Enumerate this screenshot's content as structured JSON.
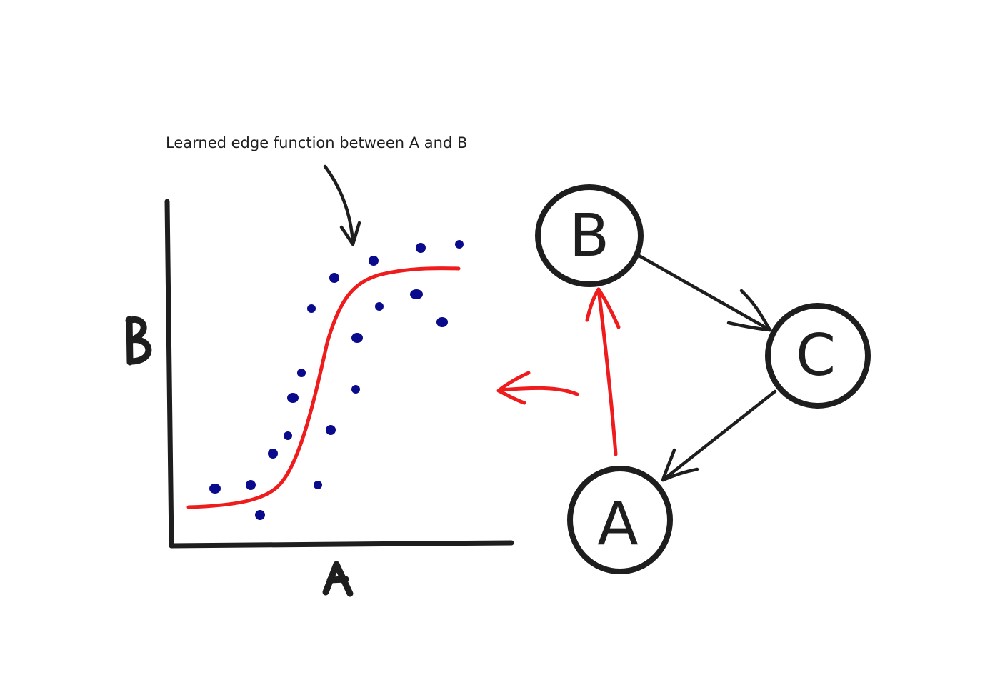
{
  "annotation": "Learned edge function between A and B",
  "plot": {
    "x_label": "A",
    "y_label": "B"
  },
  "graph": {
    "nodes": [
      {
        "id": "B",
        "label": "B"
      },
      {
        "id": "C",
        "label": "C"
      },
      {
        "id": "A",
        "label": "A"
      }
    ],
    "edges": [
      {
        "from": "B",
        "to": "C",
        "color": "#1e1e1e"
      },
      {
        "from": "C",
        "to": "A",
        "color": "#1e1e1e"
      },
      {
        "from": "A",
        "to": "B",
        "color": "#ee1c1c"
      }
    ]
  },
  "colors": {
    "ink": "#1e1e1e",
    "highlight": "#ee1c1c",
    "dots": "#0a0a8c"
  }
}
